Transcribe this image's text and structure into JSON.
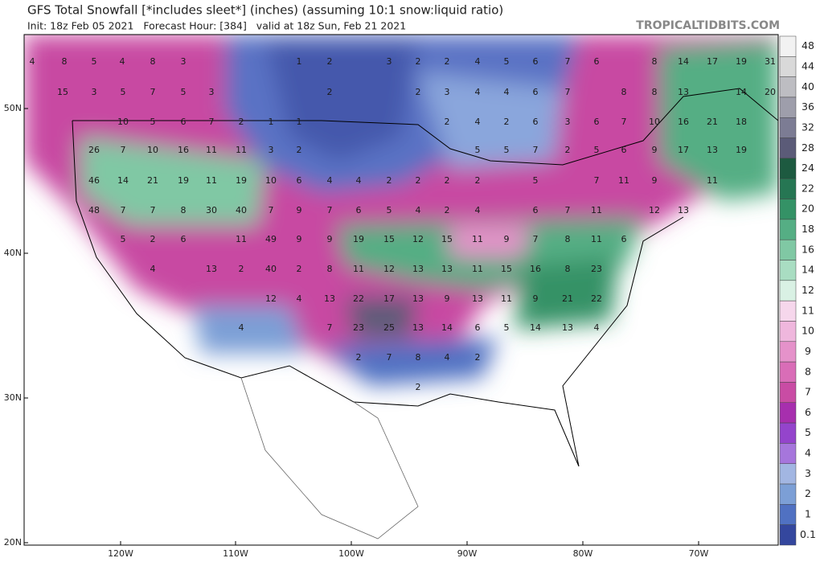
{
  "header": {
    "title": "GFS Total Snowfall [*includes sleet*] (inches) (assuming 10:1 snow:liquid ratio)",
    "subtitle": "Init: 18z Feb 05 2021   Forecast Hour: [384]   valid at 18z Sun, Feb 21 2021",
    "brand": "TROPICALTIDBITS.COM"
  },
  "map": {
    "lat_labels": [
      "50N",
      "40N",
      "30N",
      "20N"
    ],
    "lon_labels": [
      "120W",
      "110W",
      "100W",
      "90W",
      "80W",
      "70W"
    ],
    "values": [
      4,
      8,
      5,
      4,
      8,
      3,
      1,
      2,
      3,
      2,
      2,
      4,
      5,
      6,
      7,
      6,
      8,
      14,
      17,
      19,
      31,
      15,
      3,
      5,
      7,
      5,
      3,
      2,
      2,
      3,
      4,
      4,
      6,
      7,
      8,
      8,
      13,
      14,
      20,
      10,
      5,
      6,
      7,
      2,
      1,
      1,
      2,
      4,
      2,
      6,
      3,
      6,
      7,
      10,
      16,
      21,
      18,
      26,
      7,
      10,
      16,
      11,
      11,
      3,
      2,
      5,
      5,
      7,
      2,
      5,
      6,
      9,
      17,
      13,
      19,
      46,
      14,
      21,
      19,
      11,
      19,
      10,
      6,
      4,
      4,
      2,
      2,
      2,
      2,
      5,
      7,
      11,
      9,
      11,
      48,
      7,
      7,
      8,
      30,
      40,
      7,
      9,
      7,
      6,
      5,
      4,
      2,
      4,
      6,
      7,
      11,
      12,
      13,
      5,
      2,
      6,
      11,
      49,
      9,
      9,
      19,
      15,
      12,
      15,
      11,
      9,
      7,
      8,
      11,
      6,
      4,
      13,
      2,
      40,
      2,
      8,
      11,
      12,
      13,
      13,
      11,
      15,
      16,
      8,
      23,
      12,
      4,
      13,
      22,
      17,
      13,
      9,
      13,
      11,
      9,
      21,
      22,
      4,
      7,
      23,
      25,
      13,
      14,
      6,
      5,
      14,
      13,
      4,
      2,
      7,
      8,
      4,
      2,
      2
    ]
  },
  "colorbar": {
    "levels": [
      {
        "value": 48,
        "color": "#f2f2f2"
      },
      {
        "value": 44,
        "color": "#d9d9d9"
      },
      {
        "value": 40,
        "color": "#bdbdc2"
      },
      {
        "value": 36,
        "color": "#9e9eab"
      },
      {
        "value": 32,
        "color": "#7c7c94"
      },
      {
        "value": 28,
        "color": "#5b5b78"
      },
      {
        "value": 24,
        "color": "#1d5a40"
      },
      {
        "value": 22,
        "color": "#267653"
      },
      {
        "value": 20,
        "color": "#349266"
      },
      {
        "value": 18,
        "color": "#55ae84"
      },
      {
        "value": 16,
        "color": "#80c8a4"
      },
      {
        "value": 14,
        "color": "#a9ddc2"
      },
      {
        "value": 12,
        "color": "#d9f1e4"
      },
      {
        "value": 11,
        "color": "#f6d7ec"
      },
      {
        "value": 10,
        "color": "#efb7dd"
      },
      {
        "value": 9,
        "color": "#e592ca"
      },
      {
        "value": 8,
        "color": "#d96db7"
      },
      {
        "value": 7,
        "color": "#c94ca4"
      },
      {
        "value": 6,
        "color": "#a72fae"
      },
      {
        "value": 5,
        "color": "#9444cc"
      },
      {
        "value": 4,
        "color": "#a676dc"
      },
      {
        "value": 3,
        "color": "#a2b6e2"
      },
      {
        "value": 2,
        "color": "#7c9fd6"
      },
      {
        "value": 1,
        "color": "#5071c2"
      },
      {
        "value": 0.1,
        "color": "#34479e"
      }
    ]
  }
}
